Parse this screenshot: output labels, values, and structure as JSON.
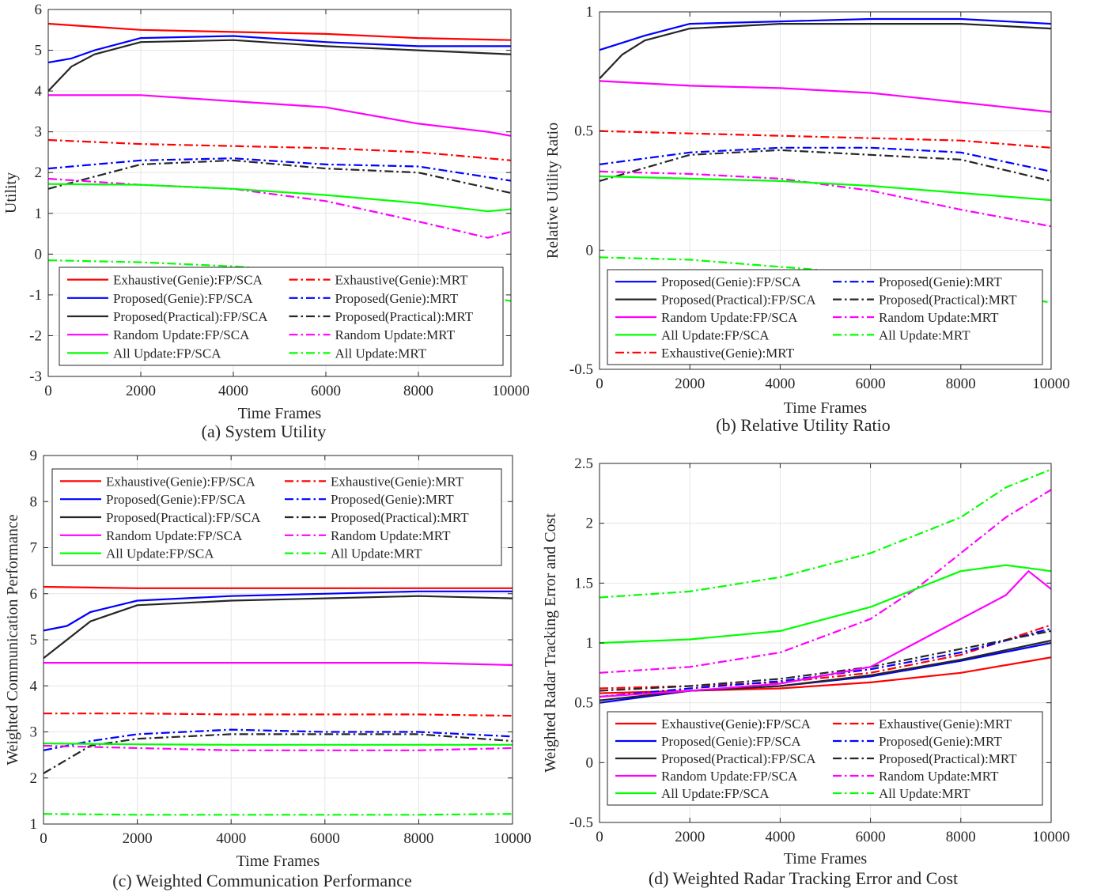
{
  "chart_data": [
    {
      "panel": "a",
      "type": "line",
      "caption": "(a) System Utility",
      "xlabel": "Time Frames",
      "ylabel": "Utility",
      "xlim": [
        0,
        10000
      ],
      "ylim": [
        -3,
        6
      ],
      "xticks": [
        0,
        2000,
        4000,
        6000,
        8000,
        10000
      ],
      "yticks": [
        -3,
        -2,
        -1,
        0,
        1,
        2,
        3,
        4,
        5,
        6
      ],
      "grid": true,
      "legend": {
        "placement": "bottom-center",
        "columns": 2
      },
      "series": [
        {
          "name": "Exhaustive(Genie):FP/SCA",
          "color": "#ff0000",
          "style": "solid",
          "x": [
            0,
            2000,
            4000,
            6000,
            8000,
            10000
          ],
          "y": [
            5.65,
            5.5,
            5.45,
            5.4,
            5.3,
            5.25
          ]
        },
        {
          "name": "Exhaustive(Genie):MRT",
          "color": "#ff0000",
          "style": "dashdot",
          "x": [
            0,
            2000,
            4000,
            6000,
            8000,
            10000
          ],
          "y": [
            2.8,
            2.7,
            2.65,
            2.6,
            2.5,
            2.3
          ]
        },
        {
          "name": "Proposed(Genie):FP/SCA",
          "color": "#0000ff",
          "style": "solid",
          "x": [
            0,
            500,
            1000,
            2000,
            4000,
            6000,
            8000,
            10000
          ],
          "y": [
            4.7,
            4.8,
            5.0,
            5.3,
            5.35,
            5.2,
            5.1,
            5.1
          ]
        },
        {
          "name": "Proposed(Genie):MRT",
          "color": "#0000ff",
          "style": "dashdot",
          "x": [
            0,
            2000,
            4000,
            6000,
            8000,
            10000
          ],
          "y": [
            2.1,
            2.3,
            2.35,
            2.2,
            2.15,
            1.8
          ]
        },
        {
          "name": "Proposed(Practical):FP/SCA",
          "color": "#262626",
          "style": "solid",
          "x": [
            0,
            500,
            1000,
            2000,
            4000,
            6000,
            8000,
            10000
          ],
          "y": [
            4.0,
            4.6,
            4.9,
            5.2,
            5.25,
            5.1,
            5.0,
            4.9
          ]
        },
        {
          "name": "Proposed(Practical):MRT",
          "color": "#262626",
          "style": "dashdot",
          "x": [
            0,
            2000,
            4000,
            6000,
            8000,
            10000
          ],
          "y": [
            1.6,
            2.2,
            2.3,
            2.1,
            2.0,
            1.5
          ]
        },
        {
          "name": "Random Update:FP/SCA",
          "color": "#ff00ff",
          "style": "solid",
          "x": [
            0,
            2000,
            4000,
            6000,
            8000,
            9500,
            10000
          ],
          "y": [
            3.9,
            3.9,
            3.75,
            3.6,
            3.2,
            3.0,
            2.9
          ]
        },
        {
          "name": "Random Update:MRT",
          "color": "#ff00ff",
          "style": "dashdot",
          "x": [
            0,
            2000,
            4000,
            6000,
            8000,
            9500,
            10000
          ],
          "y": [
            1.85,
            1.7,
            1.6,
            1.3,
            0.8,
            0.4,
            0.55
          ]
        },
        {
          "name": "All Update:FP/SCA",
          "color": "#00ff00",
          "style": "solid",
          "x": [
            0,
            2000,
            4000,
            6000,
            8000,
            9500,
            10000
          ],
          "y": [
            1.72,
            1.7,
            1.6,
            1.45,
            1.25,
            1.05,
            1.1
          ]
        },
        {
          "name": "All Update:MRT",
          "color": "#00ff00",
          "style": "dashdot",
          "x": [
            0,
            2000,
            4000,
            5000,
            6000,
            8000,
            10000
          ],
          "y": [
            -0.15,
            -0.2,
            -0.3,
            -0.38,
            -0.5,
            -0.8,
            -1.15
          ]
        }
      ]
    },
    {
      "panel": "b",
      "type": "line",
      "caption": "(b) Relative Utility Ratio",
      "xlabel": "Time Frames",
      "ylabel": "Relative Utility Ratio",
      "xlim": [
        0,
        10000
      ],
      "ylim": [
        -0.5,
        1
      ],
      "xticks": [
        0,
        2000,
        4000,
        6000,
        8000,
        10000
      ],
      "yticks": [
        -0.5,
        0,
        0.5,
        1
      ],
      "grid": true,
      "legend": {
        "placement": "bottom-center",
        "columns": 2
      },
      "series": [
        {
          "name": "Proposed(Genie):FP/SCA",
          "color": "#0000ff",
          "style": "solid",
          "x": [
            0,
            500,
            1000,
            2000,
            4000,
            6000,
            8000,
            10000
          ],
          "y": [
            0.84,
            0.87,
            0.9,
            0.95,
            0.96,
            0.97,
            0.97,
            0.95
          ]
        },
        {
          "name": "Proposed(Genie):MRT",
          "color": "#0000ff",
          "style": "dashdot",
          "x": [
            0,
            2000,
            4000,
            6000,
            8000,
            10000
          ],
          "y": [
            0.36,
            0.41,
            0.43,
            0.43,
            0.41,
            0.33
          ]
        },
        {
          "name": "Proposed(Practical):FP/SCA",
          "color": "#262626",
          "style": "solid",
          "x": [
            0,
            500,
            1000,
            2000,
            4000,
            6000,
            8000,
            10000
          ],
          "y": [
            0.72,
            0.82,
            0.88,
            0.93,
            0.95,
            0.95,
            0.95,
            0.93
          ]
        },
        {
          "name": "Proposed(Practical):MRT",
          "color": "#262626",
          "style": "dashdot",
          "x": [
            0,
            2000,
            4000,
            6000,
            8000,
            10000
          ],
          "y": [
            0.29,
            0.4,
            0.42,
            0.4,
            0.38,
            0.29
          ]
        },
        {
          "name": "Random Update:FP/SCA",
          "color": "#ff00ff",
          "style": "solid",
          "x": [
            0,
            2000,
            4000,
            6000,
            8000,
            10000
          ],
          "y": [
            0.71,
            0.69,
            0.68,
            0.66,
            0.62,
            0.58
          ]
        },
        {
          "name": "Random Update:MRT",
          "color": "#ff00ff",
          "style": "dashdot",
          "x": [
            0,
            2000,
            4000,
            6000,
            8000,
            10000
          ],
          "y": [
            0.33,
            0.32,
            0.3,
            0.25,
            0.17,
            0.1
          ]
        },
        {
          "name": "All Update:FP/SCA",
          "color": "#00ff00",
          "style": "solid",
          "x": [
            0,
            2000,
            4000,
            6000,
            8000,
            10000
          ],
          "y": [
            0.31,
            0.3,
            0.29,
            0.27,
            0.24,
            0.21
          ]
        },
        {
          "name": "All Update:MRT",
          "color": "#00ff00",
          "style": "dashdot",
          "x": [
            0,
            2000,
            4000,
            6000,
            8000,
            10000
          ],
          "y": [
            -0.03,
            -0.04,
            -0.07,
            -0.1,
            -0.16,
            -0.22
          ]
        },
        {
          "name": "Exhaustive(Genie):MRT",
          "color": "#ff0000",
          "style": "dashdot",
          "x": [
            0,
            2000,
            4000,
            6000,
            8000,
            10000
          ],
          "y": [
            0.5,
            0.49,
            0.48,
            0.47,
            0.46,
            0.43
          ]
        }
      ]
    },
    {
      "panel": "c",
      "type": "line",
      "caption": "(c) Weighted Communication Performance",
      "xlabel": "Time Frames",
      "ylabel": "Weighted Communication Performance",
      "xlim": [
        0,
        10000
      ],
      "ylim": [
        1,
        9
      ],
      "xticks": [
        0,
        2000,
        4000,
        6000,
        8000,
        10000
      ],
      "yticks": [
        1,
        2,
        3,
        4,
        5,
        6,
        7,
        8,
        9
      ],
      "grid": true,
      "legend": {
        "placement": "top-center",
        "columns": 2
      },
      "series": [
        {
          "name": "Exhaustive(Genie):FP/SCA",
          "color": "#ff0000",
          "style": "solid",
          "x": [
            0,
            2000,
            4000,
            6000,
            8000,
            10000
          ],
          "y": [
            6.15,
            6.12,
            6.12,
            6.12,
            6.12,
            6.12
          ]
        },
        {
          "name": "Exhaustive(Genie):MRT",
          "color": "#ff0000",
          "style": "dashdot",
          "x": [
            0,
            2000,
            4000,
            6000,
            8000,
            10000
          ],
          "y": [
            3.4,
            3.4,
            3.38,
            3.38,
            3.38,
            3.35
          ]
        },
        {
          "name": "Proposed(Genie):FP/SCA",
          "color": "#0000ff",
          "style": "solid",
          "x": [
            0,
            500,
            1000,
            2000,
            4000,
            6000,
            8000,
            10000
          ],
          "y": [
            5.2,
            5.3,
            5.6,
            5.85,
            5.95,
            6.0,
            6.05,
            6.05
          ]
        },
        {
          "name": "Proposed(Genie):MRT",
          "color": "#0000ff",
          "style": "dashdot",
          "x": [
            0,
            500,
            1000,
            2000,
            4000,
            6000,
            8000,
            10000
          ],
          "y": [
            2.6,
            2.7,
            2.8,
            2.95,
            3.05,
            3.0,
            3.0,
            2.9
          ]
        },
        {
          "name": "Proposed(Practical):FP/SCA",
          "color": "#262626",
          "style": "solid",
          "x": [
            0,
            500,
            1000,
            2000,
            4000,
            6000,
            8000,
            10000
          ],
          "y": [
            4.6,
            5.0,
            5.4,
            5.75,
            5.85,
            5.9,
            5.95,
            5.9
          ]
        },
        {
          "name": "Proposed(Practical):MRT",
          "color": "#262626",
          "style": "dashdot",
          "x": [
            0,
            500,
            1000,
            2000,
            4000,
            6000,
            8000,
            10000
          ],
          "y": [
            2.1,
            2.4,
            2.7,
            2.85,
            2.95,
            2.95,
            2.95,
            2.8
          ]
        },
        {
          "name": "Random Update:FP/SCA",
          "color": "#ff00ff",
          "style": "solid",
          "x": [
            0,
            2000,
            4000,
            6000,
            8000,
            10000
          ],
          "y": [
            4.5,
            4.5,
            4.5,
            4.5,
            4.5,
            4.45
          ]
        },
        {
          "name": "Random Update:MRT",
          "color": "#ff00ff",
          "style": "dashdot",
          "x": [
            0,
            2000,
            4000,
            6000,
            8000,
            10000
          ],
          "y": [
            2.7,
            2.65,
            2.6,
            2.6,
            2.6,
            2.65
          ]
        },
        {
          "name": "All Update:FP/SCA",
          "color": "#00ff00",
          "style": "solid",
          "x": [
            0,
            2000,
            4000,
            6000,
            8000,
            10000
          ],
          "y": [
            2.75,
            2.73,
            2.72,
            2.72,
            2.72,
            2.72
          ]
        },
        {
          "name": "All Update:MRT",
          "color": "#00ff00",
          "style": "dashdot",
          "x": [
            0,
            2000,
            4000,
            6000,
            8000,
            10000
          ],
          "y": [
            1.22,
            1.2,
            1.2,
            1.2,
            1.2,
            1.22
          ]
        }
      ]
    },
    {
      "panel": "d",
      "type": "line",
      "caption": "(d) Weighted Radar Tracking Error and Cost",
      "xlabel": "Time Frames",
      "ylabel": "Weighted Radar Tracking Error and Cost",
      "xlim": [
        0,
        10000
      ],
      "ylim": [
        -0.5,
        2.5
      ],
      "xticks": [
        0,
        2000,
        4000,
        6000,
        8000,
        10000
      ],
      "yticks": [
        -0.5,
        0,
        0.5,
        1,
        1.5,
        2,
        2.5
      ],
      "grid": true,
      "legend": {
        "placement": "bottom-center",
        "columns": 2
      },
      "series": [
        {
          "name": "Exhaustive(Genie):FP/SCA",
          "color": "#ff0000",
          "style": "solid",
          "x": [
            0,
            2000,
            4000,
            6000,
            8000,
            10000
          ],
          "y": [
            0.58,
            0.6,
            0.62,
            0.67,
            0.75,
            0.88
          ]
        },
        {
          "name": "Exhaustive(Genie):MRT",
          "color": "#ff0000",
          "style": "dashdot",
          "x": [
            0,
            2000,
            4000,
            6000,
            8000,
            10000
          ],
          "y": [
            0.62,
            0.64,
            0.67,
            0.75,
            0.9,
            1.15
          ]
        },
        {
          "name": "Proposed(Genie):FP/SCA",
          "color": "#0000ff",
          "style": "solid",
          "x": [
            0,
            2000,
            4000,
            6000,
            8000,
            10000
          ],
          "y": [
            0.5,
            0.6,
            0.64,
            0.72,
            0.85,
            1.0
          ]
        },
        {
          "name": "Proposed(Genie):MRT",
          "color": "#0000ff",
          "style": "dashdot",
          "x": [
            0,
            2000,
            4000,
            6000,
            8000,
            10000
          ],
          "y": [
            0.55,
            0.62,
            0.68,
            0.78,
            0.92,
            1.12
          ]
        },
        {
          "name": "Proposed(Practical):FP/SCA",
          "color": "#262626",
          "style": "solid",
          "x": [
            0,
            2000,
            4000,
            6000,
            8000,
            10000
          ],
          "y": [
            0.52,
            0.6,
            0.64,
            0.73,
            0.86,
            1.02
          ]
        },
        {
          "name": "Proposed(Practical):MRT",
          "color": "#262626",
          "style": "dashdot",
          "x": [
            0,
            2000,
            4000,
            6000,
            8000,
            10000
          ],
          "y": [
            0.6,
            0.64,
            0.7,
            0.8,
            0.95,
            1.1
          ]
        },
        {
          "name": "Random Update:FP/SCA",
          "color": "#ff00ff",
          "style": "solid",
          "x": [
            0,
            2000,
            4000,
            6000,
            7000,
            8000,
            9000,
            9500,
            10000
          ],
          "y": [
            0.55,
            0.6,
            0.66,
            0.8,
            1.0,
            1.2,
            1.4,
            1.6,
            1.45
          ]
        },
        {
          "name": "Random Update:MRT",
          "color": "#ff00ff",
          "style": "dashdot",
          "x": [
            0,
            2000,
            4000,
            6000,
            7000,
            8000,
            9000,
            10000
          ],
          "y": [
            0.75,
            0.8,
            0.92,
            1.2,
            1.45,
            1.75,
            2.05,
            2.28
          ]
        },
        {
          "name": "All Update:FP/SCA",
          "color": "#00ff00",
          "style": "solid",
          "x": [
            0,
            2000,
            4000,
            5000,
            6000,
            7000,
            8000,
            9000,
            10000
          ],
          "y": [
            1.0,
            1.03,
            1.1,
            1.2,
            1.3,
            1.45,
            1.6,
            1.65,
            1.6
          ]
        },
        {
          "name": "All Update:MRT",
          "color": "#00ff00",
          "style": "dashdot",
          "x": [
            0,
            2000,
            4000,
            6000,
            8000,
            9000,
            10000
          ],
          "y": [
            1.38,
            1.43,
            1.55,
            1.75,
            2.05,
            2.3,
            2.45
          ]
        }
      ]
    }
  ]
}
